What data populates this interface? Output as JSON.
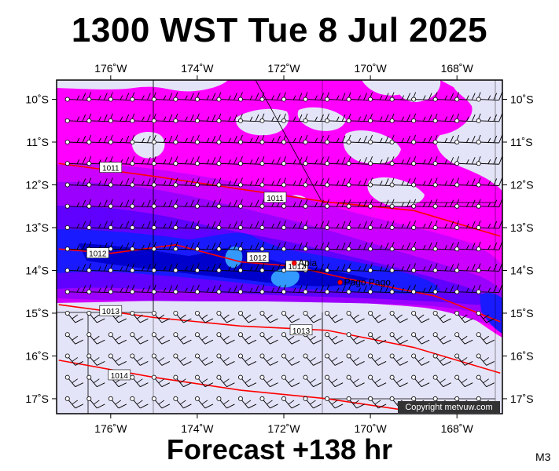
{
  "title": "1300 WST Tue 8 Jul 2025",
  "subtitle": "Forecast +138 hr",
  "model_code": "M3",
  "copyright": "Copyright metvuw.com",
  "colors": {
    "background_calm": "#e4e4f8",
    "magenta": "#ff00ff",
    "violet_light": "#cc00ff",
    "violet": "#9b00ff",
    "blue_violet": "#6000ff",
    "blue": "#1a1aff",
    "blue_deep": "#0000cc",
    "cyan_core": "#3399ff",
    "isobar": "#ff0000"
  },
  "map": {
    "lon_ticks": [
      {
        "value": -176,
        "label": "176˚W"
      },
      {
        "value": -174,
        "label": "174˚W"
      },
      {
        "value": -172,
        "label": "172˚W"
      },
      {
        "value": -170,
        "label": "170˚W"
      },
      {
        "value": -168,
        "label": "168˚W"
      }
    ],
    "lat_ticks": [
      {
        "value": -10,
        "label": "10˚S"
      },
      {
        "value": -11,
        "label": "11˚S"
      },
      {
        "value": -12,
        "label": "12˚S"
      },
      {
        "value": -13,
        "label": "13˚S"
      },
      {
        "value": -14,
        "label": "14˚S"
      },
      {
        "value": -15,
        "label": "15˚S"
      },
      {
        "value": -16,
        "label": "16˚S"
      },
      {
        "value": -17,
        "label": "17˚S"
      }
    ],
    "isobars": [
      {
        "label": "1011",
        "points": [
          [
            -177.2,
            -11.5
          ],
          [
            -175,
            -11.8
          ],
          [
            -173,
            -12.1
          ],
          [
            -171,
            -12.4
          ],
          [
            -169,
            -12.6
          ],
          [
            -167,
            -13.2
          ]
        ]
      },
      {
        "label": "1012",
        "points": [
          [
            -177.2,
            -13.5
          ],
          [
            -176,
            -13.6
          ],
          [
            -174.5,
            -13.4
          ],
          [
            -173,
            -13.8
          ],
          [
            -171.8,
            -13.9
          ],
          [
            -170.5,
            -14.2
          ],
          [
            -168.5,
            -14.6
          ],
          [
            -167,
            -15.2
          ]
        ]
      },
      {
        "label": "1013",
        "points": [
          [
            -177.2,
            -14.8
          ],
          [
            -175,
            -15.1
          ],
          [
            -173,
            -15.3
          ],
          [
            -171,
            -15.4
          ],
          [
            -169,
            -15.8
          ],
          [
            -167,
            -16.4
          ]
        ]
      },
      {
        "label": "1014",
        "points": [
          [
            -177.2,
            -16.1
          ],
          [
            -175,
            -16.5
          ],
          [
            -173,
            -16.8
          ],
          [
            -171,
            -17.0
          ],
          [
            -169,
            -17.3
          ]
        ]
      }
    ],
    "isobar_labels": [
      {
        "text": "1011",
        "lon": -176.0,
        "lat": -11.6
      },
      {
        "text": "1011",
        "lon": -172.2,
        "lat": -12.3
      },
      {
        "text": "1012",
        "lon": -176.3,
        "lat": -13.6
      },
      {
        "text": "1012",
        "lon": -172.6,
        "lat": -13.7
      },
      {
        "text": "1012",
        "lon": -171.7,
        "lat": -13.9
      },
      {
        "text": "1013",
        "lon": -176.0,
        "lat": -14.95
      },
      {
        "text": "1013",
        "lon": -171.6,
        "lat": -15.4
      },
      {
        "text": "1014",
        "lon": -175.8,
        "lat": -16.45
      }
    ],
    "places": [
      {
        "name": "Apia",
        "lon": -171.76,
        "lat": -13.83
      },
      {
        "name": "Pago Pago",
        "lon": -170.7,
        "lat": -14.28
      }
    ]
  }
}
